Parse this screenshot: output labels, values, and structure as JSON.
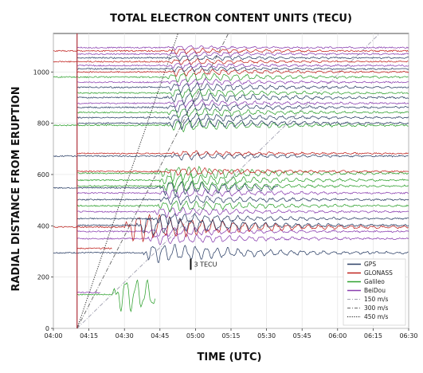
{
  "chart_data": {
    "type": "line",
    "title": "TOTAL ELECTRON CONTENT UNITS (TECU)",
    "xlabel": "TIME (UTC)",
    "ylabel": "RADIAL DISTANCE FROM ERUPTION",
    "x_ticks": [
      "04:00",
      "04:15",
      "04:30",
      "04:45",
      "05:00",
      "05:15",
      "05:30",
      "05:45",
      "06:00",
      "06:15",
      "06:30"
    ],
    "xlim_minutes": [
      0,
      150
    ],
    "ylim": [
      0,
      1150
    ],
    "y_ticks": [
      0,
      200,
      400,
      600,
      800,
      1000
    ],
    "grid": true,
    "legend_position": "bottom-right",
    "eruption_time_minutes": 10,
    "scale_annotation": "3 TECU",
    "scale_annotation_anchor": {
      "x_minutes": 58,
      "y": 250
    },
    "series_styles": [
      {
        "name": "GPS",
        "color": "#2b3f66",
        "style": "solid"
      },
      {
        "name": "GLONASS",
        "color": "#c0221e",
        "style": "solid"
      },
      {
        "name": "Galileo",
        "color": "#2fa12f",
        "style": "solid"
      },
      {
        "name": "BeiDou",
        "color": "#8a3fb0",
        "style": "solid"
      },
      {
        "name": "150 m/s",
        "color": "#a0a0b0",
        "style": "dashdot"
      },
      {
        "name": "300 m/s",
        "color": "#666666",
        "style": "dashdot"
      },
      {
        "name": "450 m/s",
        "color": "#111111",
        "style": "dotted"
      }
    ],
    "speed_lines": [
      {
        "name": "150 m/s",
        "speed_m_s": 150
      },
      {
        "name": "300 m/s",
        "speed_m_s": 300
      },
      {
        "name": "450 m/s",
        "speed_m_s": 450
      }
    ],
    "traces": [
      {
        "system": "Galileo",
        "distance": 132,
        "start_min": 10,
        "end_min": 43,
        "amp": 18,
        "wave_start": 25
      },
      {
        "system": "BeiDou",
        "distance": 140,
        "start_min": 10,
        "end_min": 20,
        "amp": 2,
        "wave_start": 99
      },
      {
        "system": "GPS",
        "distance": 295,
        "start_min": 0,
        "end_min": 150,
        "amp": 10,
        "wave_start": 38
      },
      {
        "system": "GLONASS",
        "distance": 312,
        "start_min": 10,
        "end_min": 25,
        "amp": 3,
        "wave_start": 99
      },
      {
        "system": "BeiDou",
        "distance": 350,
        "start_min": 10,
        "end_min": 150,
        "amp": 6,
        "wave_start": 40
      },
      {
        "system": "BeiDou",
        "distance": 378,
        "start_min": 10,
        "end_min": 150,
        "amp": 5,
        "wave_start": 40
      },
      {
        "system": "GLONASS",
        "distance": 395,
        "start_min": 0,
        "end_min": 150,
        "amp": 15,
        "wave_start": 30
      },
      {
        "system": "GPS",
        "distance": 402,
        "start_min": 10,
        "end_min": 150,
        "amp": 10,
        "wave_start": 35
      },
      {
        "system": "GPS",
        "distance": 428,
        "start_min": 10,
        "end_min": 150,
        "amp": 6,
        "wave_start": 42
      },
      {
        "system": "BeiDou",
        "distance": 455,
        "start_min": 10,
        "end_min": 150,
        "amp": 5,
        "wave_start": 42
      },
      {
        "system": "Galileo",
        "distance": 478,
        "start_min": 10,
        "end_min": 150,
        "amp": 6,
        "wave_start": 44
      },
      {
        "system": "GPS",
        "distance": 502,
        "start_min": 10,
        "end_min": 150,
        "amp": 5,
        "wave_start": 45
      },
      {
        "system": "BeiDou",
        "distance": 528,
        "start_min": 10,
        "end_min": 150,
        "amp": 5,
        "wave_start": 45
      },
      {
        "system": "GPS",
        "distance": 548,
        "start_min": 0,
        "end_min": 95,
        "amp": 8,
        "wave_start": 44
      },
      {
        "system": "Galileo",
        "distance": 555,
        "start_min": 10,
        "end_min": 150,
        "amp": 6,
        "wave_start": 45
      },
      {
        "system": "Galileo",
        "distance": 578,
        "start_min": 10,
        "end_min": 150,
        "amp": 7,
        "wave_start": 45
      },
      {
        "system": "Galileo",
        "distance": 605,
        "start_min": 10,
        "end_min": 150,
        "amp": 8,
        "wave_start": 45
      },
      {
        "system": "GLONASS",
        "distance": 612,
        "start_min": 10,
        "end_min": 150,
        "amp": 4,
        "wave_start": 48
      },
      {
        "system": "GPS",
        "distance": 672,
        "start_min": 0,
        "end_min": 150,
        "amp": 4,
        "wave_start": 50
      },
      {
        "system": "GLONASS",
        "distance": 682,
        "start_min": 10,
        "end_min": 150,
        "amp": 3,
        "wave_start": 50
      },
      {
        "system": "Galileo",
        "distance": 792,
        "start_min": 0,
        "end_min": 150,
        "amp": 6,
        "wave_start": 48
      },
      {
        "system": "GPS",
        "distance": 800,
        "start_min": 10,
        "end_min": 150,
        "amp": 6,
        "wave_start": 48
      },
      {
        "system": "GPS",
        "distance": 822,
        "start_min": 10,
        "end_min": 150,
        "amp": 5,
        "wave_start": 48
      },
      {
        "system": "Galileo",
        "distance": 842,
        "start_min": 10,
        "end_min": 150,
        "amp": 5,
        "wave_start": 48
      },
      {
        "system": "GPS",
        "distance": 862,
        "start_min": 10,
        "end_min": 150,
        "amp": 5,
        "wave_start": 48
      },
      {
        "system": "BeiDou",
        "distance": 878,
        "start_min": 10,
        "end_min": 150,
        "amp": 4,
        "wave_start": 48
      },
      {
        "system": "GPS",
        "distance": 900,
        "start_min": 10,
        "end_min": 150,
        "amp": 6,
        "wave_start": 48
      },
      {
        "system": "Galileo",
        "distance": 918,
        "start_min": 10,
        "end_min": 150,
        "amp": 5,
        "wave_start": 48
      },
      {
        "system": "GPS",
        "distance": 940,
        "start_min": 10,
        "end_min": 150,
        "amp": 5,
        "wave_start": 48
      },
      {
        "system": "BeiDou",
        "distance": 960,
        "start_min": 10,
        "end_min": 150,
        "amp": 4,
        "wave_start": 48
      },
      {
        "system": "Galileo",
        "distance": 980,
        "start_min": 0,
        "end_min": 150,
        "amp": 5,
        "wave_start": 48
      },
      {
        "system": "GLONASS",
        "distance": 1000,
        "start_min": 10,
        "end_min": 150,
        "amp": 4,
        "wave_start": 48
      },
      {
        "system": "GPS",
        "distance": 1012,
        "start_min": 10,
        "end_min": 150,
        "amp": 3,
        "wave_start": 48
      },
      {
        "system": "BeiDou",
        "distance": 1025,
        "start_min": 10,
        "end_min": 150,
        "amp": 3,
        "wave_start": 48
      },
      {
        "system": "GLONASS",
        "distance": 1040,
        "start_min": 0,
        "end_min": 150,
        "amp": 3,
        "wave_start": 48
      },
      {
        "system": "GPS",
        "distance": 1055,
        "start_min": 10,
        "end_min": 150,
        "amp": 3,
        "wave_start": 48
      },
      {
        "system": "BeiDou",
        "distance": 1070,
        "start_min": 10,
        "end_min": 150,
        "amp": 3,
        "wave_start": 48
      },
      {
        "system": "GLONASS",
        "distance": 1082,
        "start_min": 0,
        "end_min": 150,
        "amp": 3,
        "wave_start": 48
      },
      {
        "system": "BeiDou",
        "distance": 1095,
        "start_min": 10,
        "end_min": 150,
        "amp": 2,
        "wave_start": 48
      }
    ]
  }
}
